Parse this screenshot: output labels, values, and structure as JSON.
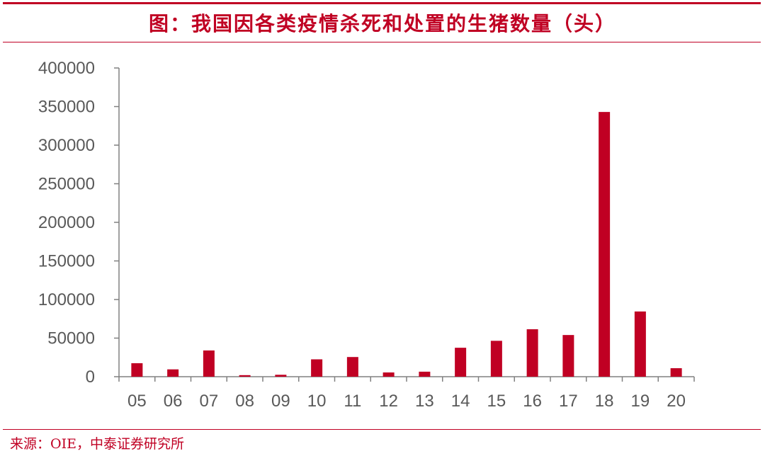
{
  "header": {
    "title": "图：我国因各类疫情杀死和处置的生猪数量（头）"
  },
  "footer": {
    "source": "来源：OIE，中泰证券研究所"
  },
  "colors": {
    "accent": "#c00023",
    "bar": "#c00023",
    "axis": "#808080",
    "tick_text": "#595959"
  },
  "chart_data": {
    "type": "bar",
    "title": "图：我国因各类疫情杀死和处置的生猪数量（头）",
    "xlabel": "",
    "ylabel": "",
    "categories": [
      "05",
      "06",
      "07",
      "08",
      "09",
      "10",
      "11",
      "12",
      "13",
      "14",
      "15",
      "16",
      "17",
      "18",
      "19",
      "20"
    ],
    "values": [
      17500,
      9500,
      34000,
      2000,
      2500,
      22500,
      25500,
      5500,
      6500,
      37500,
      46500,
      61500,
      54000,
      343000,
      84500,
      11000
    ],
    "ylim": [
      0,
      400000
    ],
    "yticks": [
      0,
      50000,
      100000,
      150000,
      200000,
      250000,
      300000,
      350000,
      400000
    ],
    "grid": false,
    "legend": "none"
  }
}
